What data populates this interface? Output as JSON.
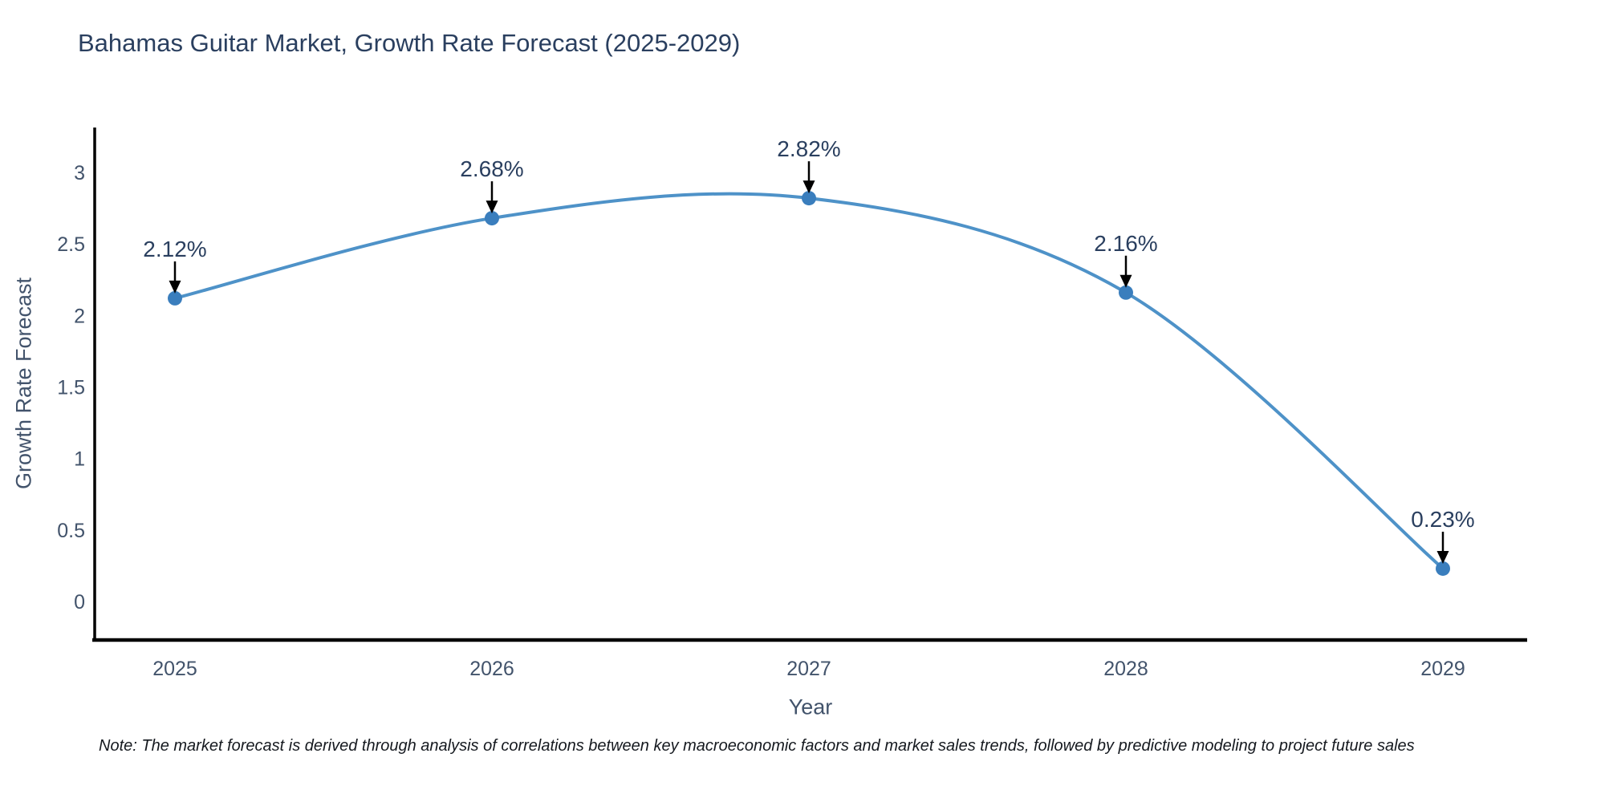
{
  "title": "Bahamas Guitar Market, Growth Rate Forecast (2025-2029)",
  "note": "Note: The market forecast is derived through analysis of correlations between key macroeconomic factors and market sales trends, followed by predictive modeling to project future sales",
  "chart_data": {
    "type": "line",
    "line_shape": "spline",
    "x": [
      2025,
      2026,
      2027,
      2028,
      2029
    ],
    "xticklabels": [
      "2025",
      "2026",
      "2027",
      "2028",
      "2029"
    ],
    "values": [
      2.12,
      2.68,
      2.82,
      2.16,
      0.23
    ],
    "point_labels": [
      "2.12%",
      "2.68%",
      "2.82%",
      "2.16%",
      "0.23%"
    ],
    "xlabel": "Year",
    "ylabel": "Growth Rate Forecast",
    "title": "Bahamas Guitar Market, Growth Rate Forecast (2025-2029)",
    "yticks": [
      0,
      0.5,
      1,
      1.5,
      2,
      2.5,
      3
    ],
    "ytick_labels": [
      "0",
      "0.5",
      "1",
      "1.5",
      "2",
      "2.5",
      "3"
    ],
    "ylim": [
      -0.27,
      3.31
    ],
    "grid": false,
    "legend": "none",
    "annotations_have_arrows": true,
    "colors": {
      "line": "#4e92c8",
      "marker": "#3a7ebd",
      "axis": "#000000",
      "title_text": "#2a3f5f",
      "tick_text": "#42536b",
      "annotation_text": "#2a3f5f",
      "arrow": "#000000",
      "background": "#ffffff"
    }
  }
}
